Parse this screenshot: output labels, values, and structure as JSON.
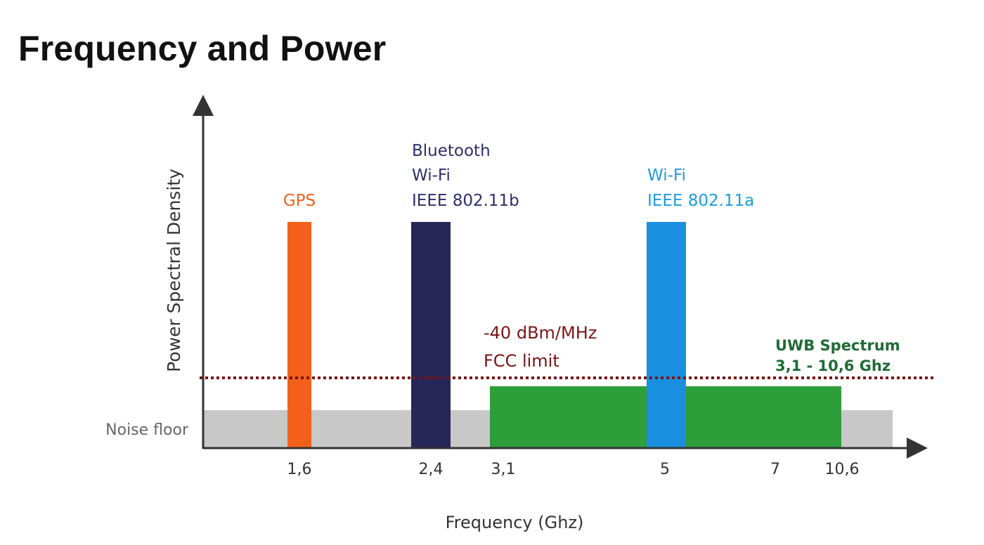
{
  "page": {
    "title": "Frequency and Power"
  },
  "chart_data": {
    "type": "bar",
    "xlabel": "Frequency (Ghz)",
    "ylabel": "Power Spectral Density",
    "x_ticks": [
      "1,6",
      "2,4",
      "3,1",
      "5",
      "7",
      "10,6"
    ],
    "noise_floor": {
      "label": "Noise floor",
      "color": "#c8c8c8"
    },
    "fcc_limit": {
      "label_lines": [
        "-40 dBm/MHz",
        "FCC limit"
      ],
      "color": "#7a1414"
    },
    "uwb": {
      "label_lines": [
        "UWB Spectrum",
        "3,1 - 10,6 Ghz"
      ],
      "range": [
        "3,1",
        "10,6"
      ],
      "color": "#2e9e3a",
      "label_color": "#1f6b34"
    },
    "bands": [
      {
        "id": "gps",
        "tick": "1,6",
        "label_lines": [
          "GPS"
        ],
        "color": "#f4601c"
      },
      {
        "id": "bluetooth",
        "tick": "2,4",
        "label_lines": [
          "Bluetooth",
          "Wi-Fi",
          "IEEE 802.11b"
        ],
        "color": "#262659",
        "label_color": "#2e2e6a"
      },
      {
        "id": "wifi-a",
        "tick": "5",
        "label_lines": [
          "Wi-Fi",
          "IEEE 802.11a"
        ],
        "color": "#1a8fe0",
        "label_color": "#1e9be2"
      }
    ]
  }
}
